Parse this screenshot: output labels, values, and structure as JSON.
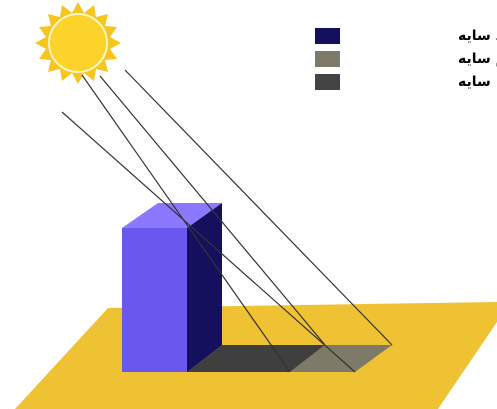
{
  "legend": [
    {
      "label": "خود سایه",
      "color": "#15105e"
    },
    {
      "label": "نیم سایه",
      "color": "#7e7a68"
    },
    {
      "label": "سایه",
      "color": "#444444"
    }
  ]
}
